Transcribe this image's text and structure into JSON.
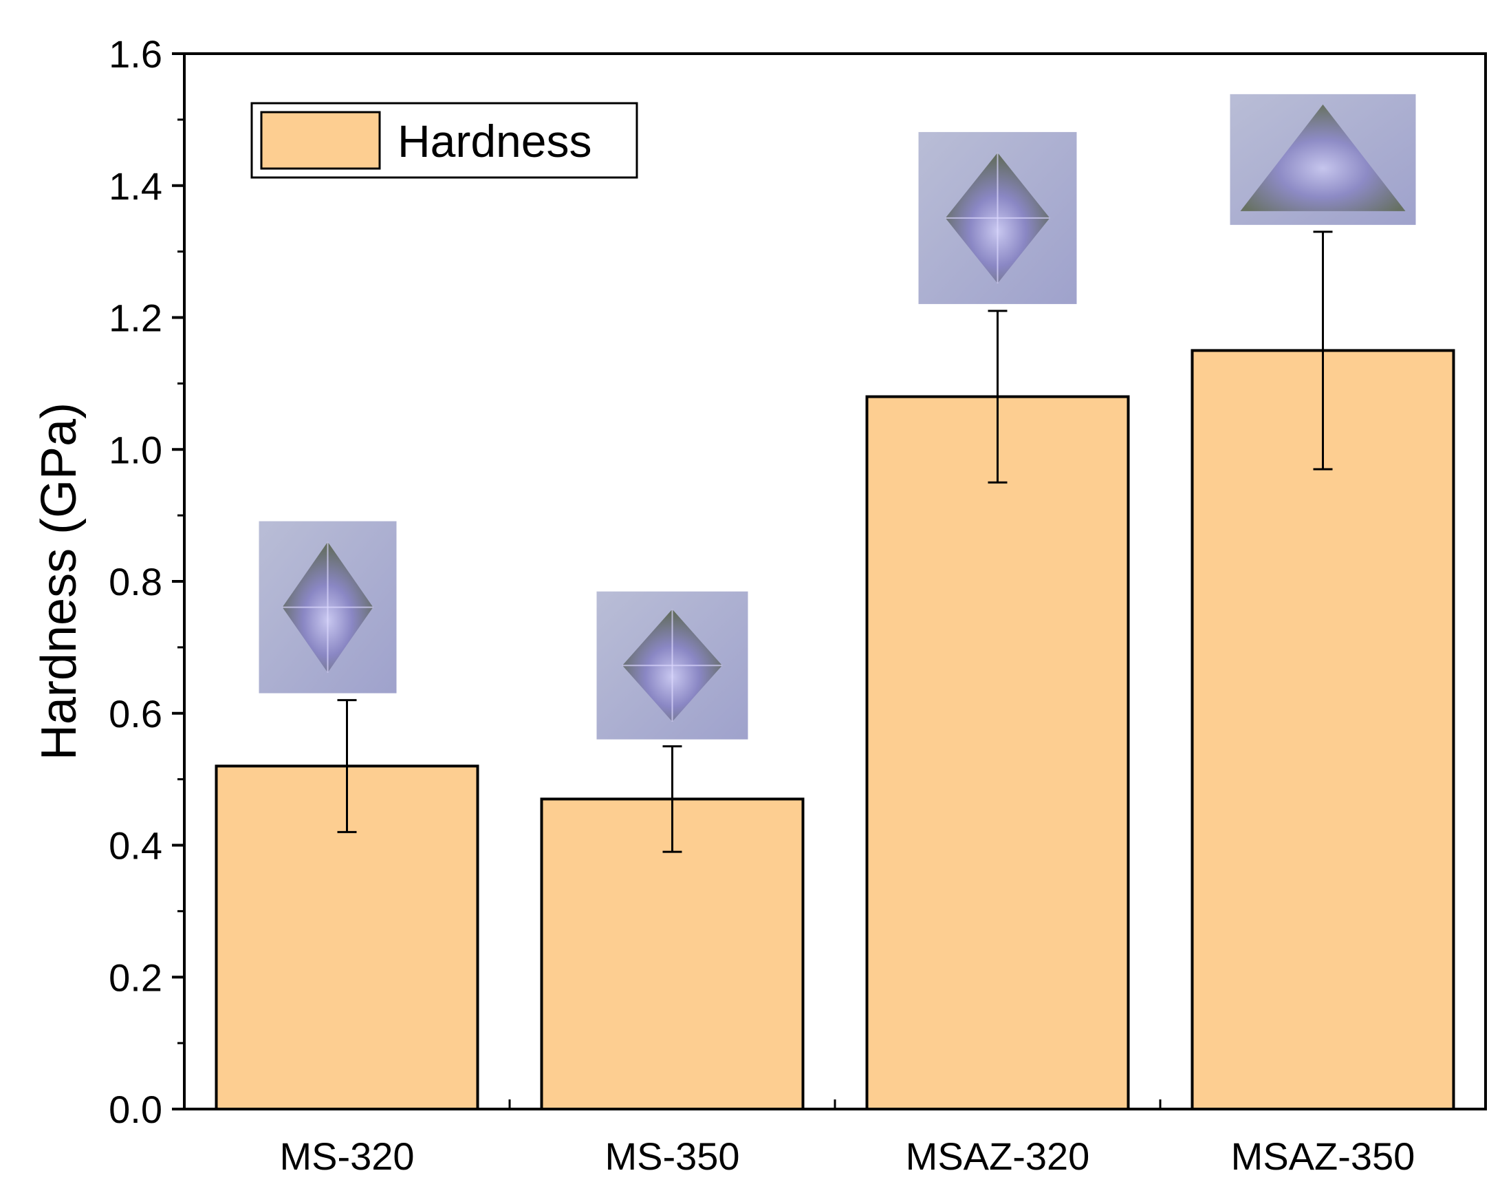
{
  "chart_data": {
    "type": "bar",
    "title": "",
    "xlabel": "",
    "ylabel": "Hardness (GPa)",
    "categories": [
      "MS-320",
      "MS-350",
      "MSAZ-320",
      "MSAZ-350"
    ],
    "series": [
      {
        "name": "Hardness",
        "values": [
          0.52,
          0.47,
          1.08,
          1.15
        ],
        "errors_upper": [
          0.62,
          0.55,
          1.21,
          1.33
        ],
        "errors_lower": [
          0.42,
          0.39,
          0.95,
          0.97
        ]
      }
    ],
    "ylim": [
      0,
      1.6
    ],
    "yticks": [
      "0.0",
      "0.2",
      "0.4",
      "0.6",
      "0.8",
      "1.0",
      "1.2",
      "1.4",
      "1.6"
    ],
    "legend": {
      "position": "top-left",
      "label": "Hardness"
    },
    "grid": false,
    "colors": {
      "bar_fill": "#FDCE91",
      "bar_stroke": "#000000"
    },
    "insets": [
      {
        "category": "MS-320",
        "depicts": "indent-micrograph"
      },
      {
        "category": "MS-350",
        "depicts": "indent-micrograph"
      },
      {
        "category": "MSAZ-320",
        "depicts": "indent-micrograph"
      },
      {
        "category": "MSAZ-350",
        "depicts": "indent-micrograph"
      }
    ]
  }
}
